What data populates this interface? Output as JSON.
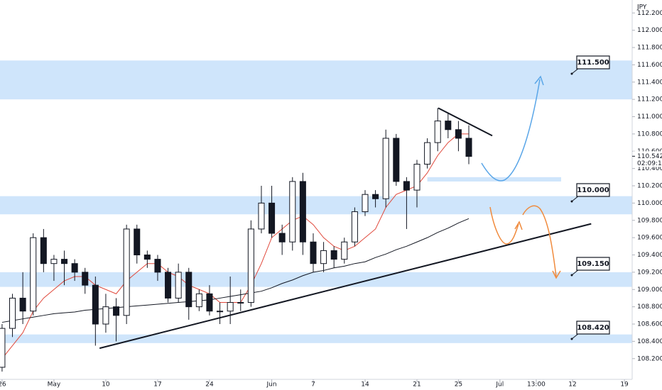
{
  "chart_data": {
    "type": "candlestick",
    "currency": "JPY",
    "open": [
      108.1,
      108.55,
      108.9,
      108.75,
      109.6,
      109.3,
      109.35,
      109.3,
      109.2,
      109.05,
      108.6,
      108.8,
      108.7,
      109.7,
      109.4,
      109.35,
      109.2,
      108.9,
      109.2,
      108.8,
      108.95,
      108.75,
      108.75,
      108.85,
      108.85,
      109.7,
      110.0,
      109.65,
      109.55,
      110.25,
      109.55,
      109.3,
      109.45,
      109.35,
      109.55,
      109.9,
      110.1,
      110.05,
      110.75,
      110.25,
      110.15,
      110.45,
      110.7,
      110.95,
      110.85,
      110.75
    ],
    "high": [
      108.6,
      108.95,
      109.2,
      109.65,
      109.7,
      109.4,
      109.45,
      109.35,
      109.25,
      109.15,
      108.95,
      108.9,
      109.75,
      109.75,
      109.45,
      109.4,
      109.25,
      109.3,
      109.25,
      109.0,
      109.05,
      108.85,
      109.15,
      109.0,
      109.8,
      110.2,
      110.2,
      109.75,
      110.3,
      110.35,
      109.65,
      109.55,
      109.5,
      109.6,
      109.95,
      110.15,
      110.15,
      110.85,
      110.8,
      110.3,
      110.5,
      110.75,
      111.1,
      111.05,
      110.95,
      110.9
    ],
    "low": [
      108.05,
      108.45,
      108.6,
      108.7,
      109.2,
      109.1,
      109.05,
      109.1,
      108.95,
      108.35,
      108.5,
      108.4,
      108.6,
      109.3,
      109.25,
      109.1,
      108.85,
      108.85,
      108.65,
      108.75,
      108.7,
      108.6,
      108.6,
      108.75,
      108.8,
      109.65,
      109.6,
      109.4,
      109.45,
      109.4,
      109.2,
      109.2,
      109.25,
      109.3,
      109.5,
      109.85,
      109.95,
      109.95,
      110.2,
      109.7,
      109.95,
      110.4,
      110.6,
      110.75,
      110.6,
      110.45
    ],
    "close": [
      108.55,
      108.9,
      108.75,
      109.6,
      109.3,
      109.35,
      109.3,
      109.2,
      109.05,
      108.6,
      108.8,
      108.7,
      109.7,
      109.4,
      109.35,
      109.2,
      108.9,
      109.2,
      108.8,
      108.95,
      108.75,
      108.75,
      108.85,
      108.85,
      109.7,
      110.0,
      109.65,
      109.55,
      110.25,
      109.55,
      109.3,
      109.45,
      109.35,
      109.55,
      109.9,
      110.1,
      110.05,
      110.75,
      110.25,
      110.15,
      110.45,
      110.7,
      110.95,
      110.85,
      110.75,
      110.54
    ],
    "up_color": "#ffffff",
    "down_color": "#131722",
    "moving_averages": [
      {
        "color": "#e0483b",
        "values": [
          108.2,
          108.35,
          108.5,
          108.75,
          108.9,
          109.0,
          109.1,
          109.15,
          109.15,
          109.05,
          109.0,
          108.95,
          109.1,
          109.2,
          109.3,
          109.3,
          109.2,
          109.15,
          109.05,
          109.0,
          108.95,
          108.85,
          108.85,
          108.85,
          109.05,
          109.3,
          109.6,
          109.7,
          109.8,
          109.85,
          109.75,
          109.6,
          109.5,
          109.45,
          109.5,
          109.6,
          109.7,
          109.95,
          110.1,
          110.15,
          110.2,
          110.35,
          110.55,
          110.7,
          110.8,
          110.8
        ]
      },
      {
        "color": "#131722",
        "values": [
          108.62,
          108.64,
          108.66,
          108.68,
          108.7,
          108.72,
          108.73,
          108.74,
          108.76,
          108.77,
          108.78,
          108.79,
          108.8,
          108.81,
          108.82,
          108.83,
          108.84,
          108.85,
          108.86,
          108.87,
          108.88,
          108.9,
          108.92,
          108.94,
          108.96,
          108.98,
          109.02,
          109.07,
          109.11,
          109.16,
          109.2,
          109.22,
          109.25,
          109.27,
          109.3,
          109.32,
          109.37,
          109.41,
          109.46,
          109.5,
          109.55,
          109.6,
          109.66,
          109.71,
          109.77,
          109.82
        ]
      }
    ],
    "zones": [
      {
        "from": 111.2,
        "to": 111.65
      },
      {
        "from": 109.87,
        "to": 110.08
      },
      {
        "from": 109.03,
        "to": 109.2
      },
      {
        "from": 108.38,
        "to": 108.48
      },
      {
        "from": 110.25,
        "to": 110.3,
        "x": [
          41,
          53.9
        ]
      }
    ],
    "zone_color": "#cfe5fb",
    "trendlines": [
      {
        "points": [
          [
            9.4,
            108.32
          ],
          [
            56.8,
            109.76
          ]
        ]
      },
      {
        "points": [
          [
            42.05,
            111.1
          ],
          [
            47.26,
            110.78
          ]
        ]
      }
    ],
    "annotations": [
      {
        "label": "111.500"
      },
      {
        "label": "110.000"
      },
      {
        "label": "109.150"
      },
      {
        "label": "108.420"
      }
    ],
    "last_price": 110.542,
    "countdown": "02:09:18",
    "xlim": [
      -0.2,
      60.75
    ],
    "ylim": [
      107.96,
      112.35
    ],
    "xticks": [
      {
        "value": 0,
        "label": "26"
      },
      {
        "value": 5,
        "label": "May"
      },
      {
        "value": 10,
        "label": "10"
      },
      {
        "value": 15,
        "label": "17"
      },
      {
        "value": 20,
        "label": "24"
      },
      {
        "value": 26,
        "label": "Jun"
      },
      {
        "value": 30,
        "label": "7"
      },
      {
        "value": 35,
        "label": "14"
      },
      {
        "value": 40,
        "label": "21"
      },
      {
        "value": 44,
        "label": "25"
      },
      {
        "value": 48,
        "label": "Jul"
      },
      {
        "value": 51.5,
        "label": "13:00"
      },
      {
        "value": 55,
        "label": "12"
      },
      {
        "value": 60,
        "label": "19"
      }
    ],
    "yticks": [
      {
        "value": 108.2,
        "label": "108.200"
      },
      {
        "value": 108.4,
        "label": "108.400"
      },
      {
        "value": 108.6,
        "label": "108.600"
      },
      {
        "value": 108.8,
        "label": "108.800"
      },
      {
        "value": 109.0,
        "label": "109.000"
      },
      {
        "value": 109.2,
        "label": "109.200"
      },
      {
        "value": 109.4,
        "label": "109.400"
      },
      {
        "value": 109.6,
        "label": "109.600"
      },
      {
        "value": 109.8,
        "label": "109.800"
      },
      {
        "value": 110.0,
        "label": "110.000"
      },
      {
        "value": 110.2,
        "label": "110.200"
      },
      {
        "value": 110.4,
        "label": "110.400"
      },
      {
        "value": 110.6,
        "label": "110.600"
      },
      {
        "value": 110.8,
        "label": "110.800"
      },
      {
        "value": 111.0,
        "label": "111.000"
      },
      {
        "value": 111.2,
        "label": "111.200"
      },
      {
        "value": 111.4,
        "label": "111.400"
      },
      {
        "value": 111.6,
        "label": "111.600"
      },
      {
        "value": 111.8,
        "label": "111.800"
      },
      {
        "value": 112.0,
        "label": "112.000"
      },
      {
        "value": 112.2,
        "label": "112.200"
      }
    ]
  }
}
